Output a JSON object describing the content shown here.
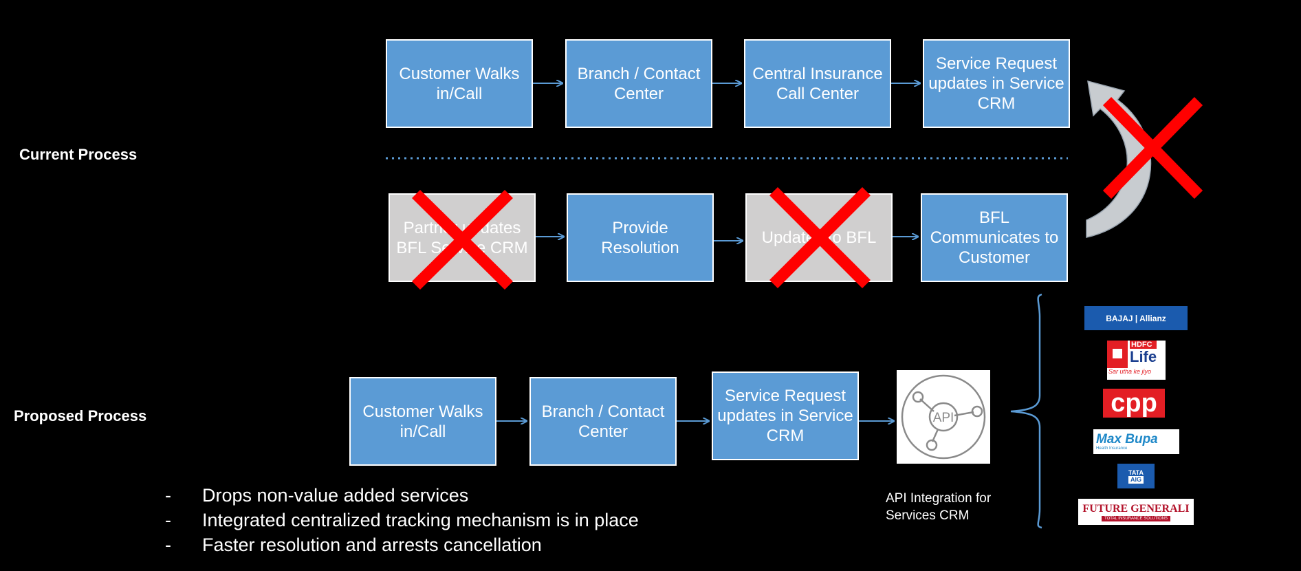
{
  "labels": {
    "current": "Current Process",
    "proposed": "Proposed Process"
  },
  "current_row1": [
    "Customer Walks in/Call",
    "Branch / Contact Center",
    "Central Insurance Call Center",
    "Service Request updates in Service CRM"
  ],
  "current_row2": [
    "Partner updates BFL Service CRM",
    "Provide Resolution",
    "Updates to BFL",
    "BFL Communicates to Customer"
  ],
  "proposed_row": [
    "Customer Walks in/Call",
    "Branch / Contact Center",
    "Service Request updates in Service CRM"
  ],
  "api": {
    "icon_text": "API",
    "caption": "API Integration for Services CRM"
  },
  "bullets": [
    "Drops non-value added services",
    "Integrated centralized tracking mechanism is in place",
    "Faster resolution and arrests cancellation"
  ],
  "bullet_marker": "-",
  "logos": {
    "bajaj": "BAJAJ | Allianz",
    "hdfc_top": "HDFC",
    "hdfc_bottom": "Life",
    "hdfc_tagline": "Sar utha ke jiyo",
    "cpp": "cpp",
    "maxbupa": "Max Bupa",
    "maxbupa_sub": "Health Insurance",
    "tata_top": "TATA",
    "tata_bottom": "AIG",
    "future": "FUTURE GENERALI",
    "future_sub": "TOTAL INSURANCE SOLUTIONS"
  },
  "colors": {
    "box_blue": "#5b9bd5",
    "box_gray": "#d0cfcf",
    "cross_red": "#ff0000",
    "dotted_line": "#5b9bd5",
    "arrow": "#5b9bd5"
  }
}
